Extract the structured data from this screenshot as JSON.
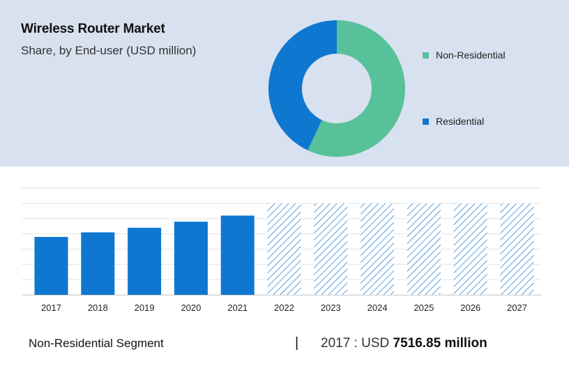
{
  "header": {
    "title": "Wireless Router Market",
    "subtitle": "Share, by End-user (USD million)"
  },
  "donut_legend": [
    {
      "label": "Non-Residential",
      "color": "#57c19a"
    },
    {
      "label": "Residential",
      "color": "#0e77d0"
    }
  ],
  "footer": {
    "segment": "Non-Residential Segment",
    "divider": "|",
    "year_prefix": "2017 :  USD ",
    "value": "7516.85 million"
  },
  "chart_data": [
    {
      "type": "pie",
      "categories": [
        "Non-Residential",
        "Residential"
      ],
      "values": [
        57,
        43
      ],
      "colors": [
        "#57c19a",
        "#0e77d0"
      ]
    },
    {
      "type": "bar",
      "categories": [
        "2017",
        "2018",
        "2019",
        "2020",
        "2021",
        "2022",
        "2023",
        "2024",
        "2025",
        "2026",
        "2027"
      ],
      "values": [
        3.8,
        4.1,
        4.4,
        4.8,
        5.2,
        6.0,
        6.0,
        6.0,
        6.0,
        6.0,
        6.0
      ],
      "forecast_from": "2022",
      "ylim": [
        0,
        7
      ],
      "grid": true,
      "bar_color": "#0e77d0",
      "forecast_pattern": "diagonal-hatch"
    }
  ]
}
